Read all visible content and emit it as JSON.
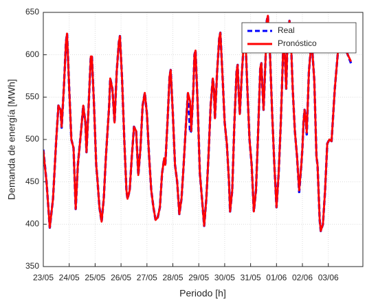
{
  "chart_data": {
    "type": "line",
    "xlabel": "Periodo [h]",
    "ylabel": "Demanda de energía [MWh]",
    "x": [
      0,
      3,
      6,
      9,
      12,
      14,
      16,
      17,
      19,
      21,
      22,
      24,
      26,
      28,
      30,
      32,
      35,
      37,
      39,
      40,
      42,
      44,
      45,
      47,
      49,
      50,
      52,
      54,
      56,
      58,
      61,
      62,
      64,
      66,
      68,
      70,
      71,
      73,
      75,
      77,
      78,
      80,
      82,
      84,
      86,
      88,
      90,
      92,
      94,
      96,
      98,
      100,
      102,
      104,
      106,
      108,
      110,
      112,
      113,
      115,
      117,
      118,
      120,
      122,
      124,
      126,
      128,
      130,
      132,
      134,
      136,
      137,
      139,
      140,
      141,
      143,
      145,
      147,
      149,
      151,
      153,
      155,
      157,
      158,
      159,
      161,
      163,
      164,
      166,
      168,
      170,
      172,
      173,
      175,
      177,
      179,
      180,
      181,
      182,
      184,
      186,
      187,
      189,
      191,
      193,
      195,
      197,
      199,
      201,
      202,
      203,
      204,
      206,
      207,
      208,
      210,
      212,
      214,
      216,
      218,
      220,
      222,
      223,
      224,
      225,
      226,
      228,
      229,
      231,
      233,
      235,
      237,
      239,
      240,
      241,
      242,
      243,
      244,
      246,
      248,
      249,
      251,
      253,
      254,
      256,
      257,
      259,
      261,
      263,
      265,
      267,
      270,
      274,
      276,
      279,
      282,
      285
    ],
    "series": [
      {
        "name": "Real",
        "color": "#0000ff",
        "dash": true,
        "values": [
          488,
          450,
          396,
          430,
          500,
          540,
          535,
          514,
          560,
          615,
          625,
          560,
          500,
          490,
          418,
          470,
          510,
          540,
          520,
          485,
          540,
          598,
          598,
          540,
          470,
          455,
          420,
          403,
          430,
          480,
          540,
          572,
          560,
          520,
          580,
          615,
          622,
          570,
          500,
          440,
          430,
          440,
          480,
          515,
          510,
          458,
          490,
          540,
          555,
          530,
          480,
          440,
          420,
          405,
          408,
          420,
          460,
          478,
          470,
          520,
          575,
          582,
          530,
          470,
          450,
          412,
          430,
          470,
          515,
          555,
          508,
          510,
          560,
          600,
          605,
          540,
          460,
          430,
          398,
          430,
          480,
          540,
          572,
          560,
          525,
          580,
          620,
          626,
          575,
          520,
          495,
          450,
          415,
          440,
          520,
          580,
          588,
          555,
          530,
          580,
          620,
          627,
          560,
          500,
          470,
          415,
          440,
          510,
          585,
          590,
          560,
          535,
          600,
          640,
          646,
          600,
          530,
          470,
          420,
          460,
          520,
          600,
          620,
          590,
          560,
          610,
          640,
          630,
          560,
          510,
          480,
          438,
          470,
          490,
          520,
          535,
          525,
          506,
          580,
          610,
          608,
          570,
          480,
          470,
          405,
          392,
          400,
          440,
          495,
          500,
          498,
          560,
          620,
          625,
          610,
          600,
          590
        ]
      },
      {
        "name": "Pronóstico",
        "color": "#ff0000",
        "dash": false,
        "values": [
          487,
          450,
          396,
          430,
          500,
          540,
          535,
          515,
          560,
          615,
          625,
          560,
          500,
          490,
          418,
          470,
          510,
          540,
          520,
          485,
          540,
          598,
          598,
          540,
          470,
          455,
          420,
          403,
          430,
          480,
          540,
          572,
          560,
          520,
          580,
          615,
          622,
          570,
          500,
          440,
          430,
          440,
          480,
          515,
          510,
          458,
          490,
          540,
          555,
          530,
          480,
          440,
          420,
          405,
          408,
          420,
          460,
          478,
          470,
          520,
          575,
          582,
          530,
          470,
          450,
          412,
          430,
          470,
          515,
          555,
          545,
          510,
          560,
          600,
          605,
          540,
          460,
          430,
          398,
          430,
          480,
          540,
          572,
          560,
          525,
          580,
          620,
          626,
          575,
          520,
          495,
          450,
          415,
          440,
          520,
          580,
          588,
          555,
          530,
          580,
          620,
          627,
          560,
          500,
          470,
          415,
          440,
          510,
          585,
          590,
          560,
          535,
          600,
          640,
          646,
          600,
          530,
          470,
          420,
          460,
          520,
          600,
          620,
          590,
          560,
          610,
          640,
          630,
          560,
          510,
          480,
          440,
          470,
          490,
          520,
          535,
          525,
          508,
          580,
          610,
          608,
          570,
          480,
          470,
          405,
          392,
          400,
          440,
          495,
          500,
          498,
          560,
          620,
          625,
          610,
          600,
          592
        ]
      }
    ],
    "xlim": [
      0,
      296
    ],
    "xticks": [
      {
        "value": 0,
        "label": "23/05"
      },
      {
        "value": 24,
        "label": "24/05"
      },
      {
        "value": 48,
        "label": "25/05"
      },
      {
        "value": 72,
        "label": "26/05"
      },
      {
        "value": 96,
        "label": "27/05"
      },
      {
        "value": 120,
        "label": "28/05"
      },
      {
        "value": 144,
        "label": "29/05"
      },
      {
        "value": 168,
        "label": "30/05"
      },
      {
        "value": 192,
        "label": "31/05"
      },
      {
        "value": 216,
        "label": "01/06"
      },
      {
        "value": 240,
        "label": "02/06"
      },
      {
        "value": 264,
        "label": "03/06"
      }
    ],
    "ylim": [
      350,
      650
    ],
    "yticks": [
      350,
      400,
      450,
      500,
      550,
      600,
      650
    ],
    "grid": true,
    "legend": "upper right"
  }
}
